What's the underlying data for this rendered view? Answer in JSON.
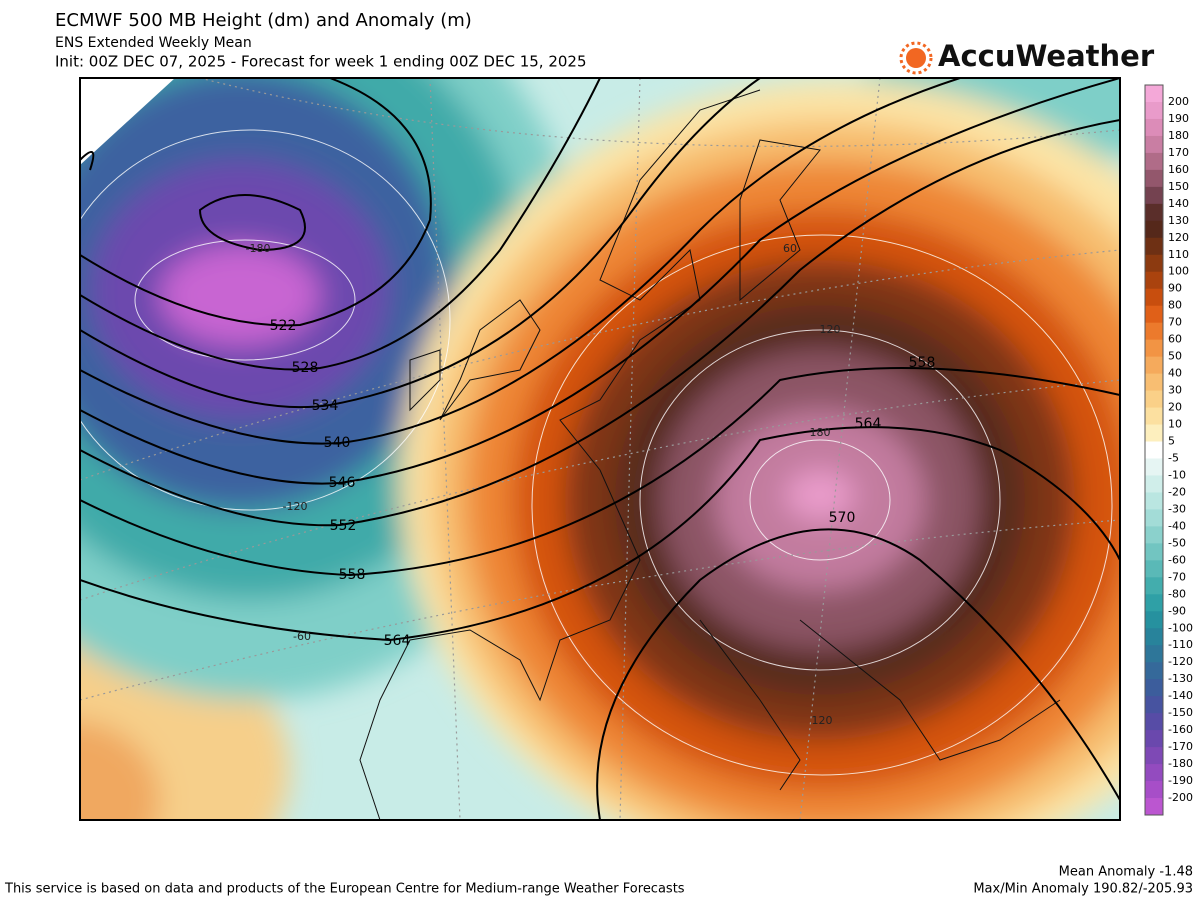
{
  "header": {
    "title": "ECMWF 500 MB Height (dm) and Anomaly (m)",
    "subtitle": "ENS Extended Weekly Mean",
    "init": "Init: 00Z DEC 07, 2025 - Forecast for week 1 ending 00Z DEC 15, 2025",
    "brand": "AccuWeather"
  },
  "map": {
    "height_labels": [
      522,
      528,
      534,
      540,
      546,
      552,
      558,
      564,
      558,
      564,
      570
    ],
    "anomaly_labels": [
      -180,
      -120,
      -60,
      60,
      120,
      180,
      120
    ]
  },
  "colorbar": {
    "labels": [
      200,
      190,
      180,
      170,
      160,
      150,
      140,
      130,
      120,
      110,
      100,
      90,
      80,
      70,
      60,
      50,
      40,
      30,
      20,
      10,
      5,
      -5,
      -10,
      -20,
      -30,
      -40,
      -50,
      -60,
      -70,
      -80,
      -90,
      -100,
      -110,
      -120,
      -130,
      -140,
      -150,
      -160,
      -170,
      -180,
      -190,
      -200
    ],
    "colors": [
      "#f4a8d8",
      "#e99bca",
      "#dc8cb8",
      "#c97ea3",
      "#b06c88",
      "#93576c",
      "#744250",
      "#5a2e2a",
      "#55281a",
      "#6e3014",
      "#8c3a10",
      "#aa430e",
      "#c84e0e",
      "#e06018",
      "#ec7a2c",
      "#f29444",
      "#f5aa5c",
      "#f8be72",
      "#fad088",
      "#fce0a0",
      "#fdefbe",
      "#ffffff",
      "#e6f5f3",
      "#d0eeea",
      "#bae6e1",
      "#a3dcd7",
      "#8bd1cc",
      "#72c5c1",
      "#5ab9b7",
      "#43adad",
      "#2fa0a6",
      "#26919f",
      "#28839b",
      "#2e7699",
      "#35699a",
      "#3c5d9c",
      "#4753a0",
      "#574ca6",
      "#6a48ad",
      "#7e49b5",
      "#934bbf",
      "#a74ec8",
      "#bb56d0"
    ]
  },
  "footer": {
    "credit": "This service is based on data and products of the European Centre for Medium-range Weather Forecasts",
    "mean_anomaly": "Mean Anomaly -1.48",
    "max_min": "Max/Min Anomaly 190.82/-205.93"
  }
}
